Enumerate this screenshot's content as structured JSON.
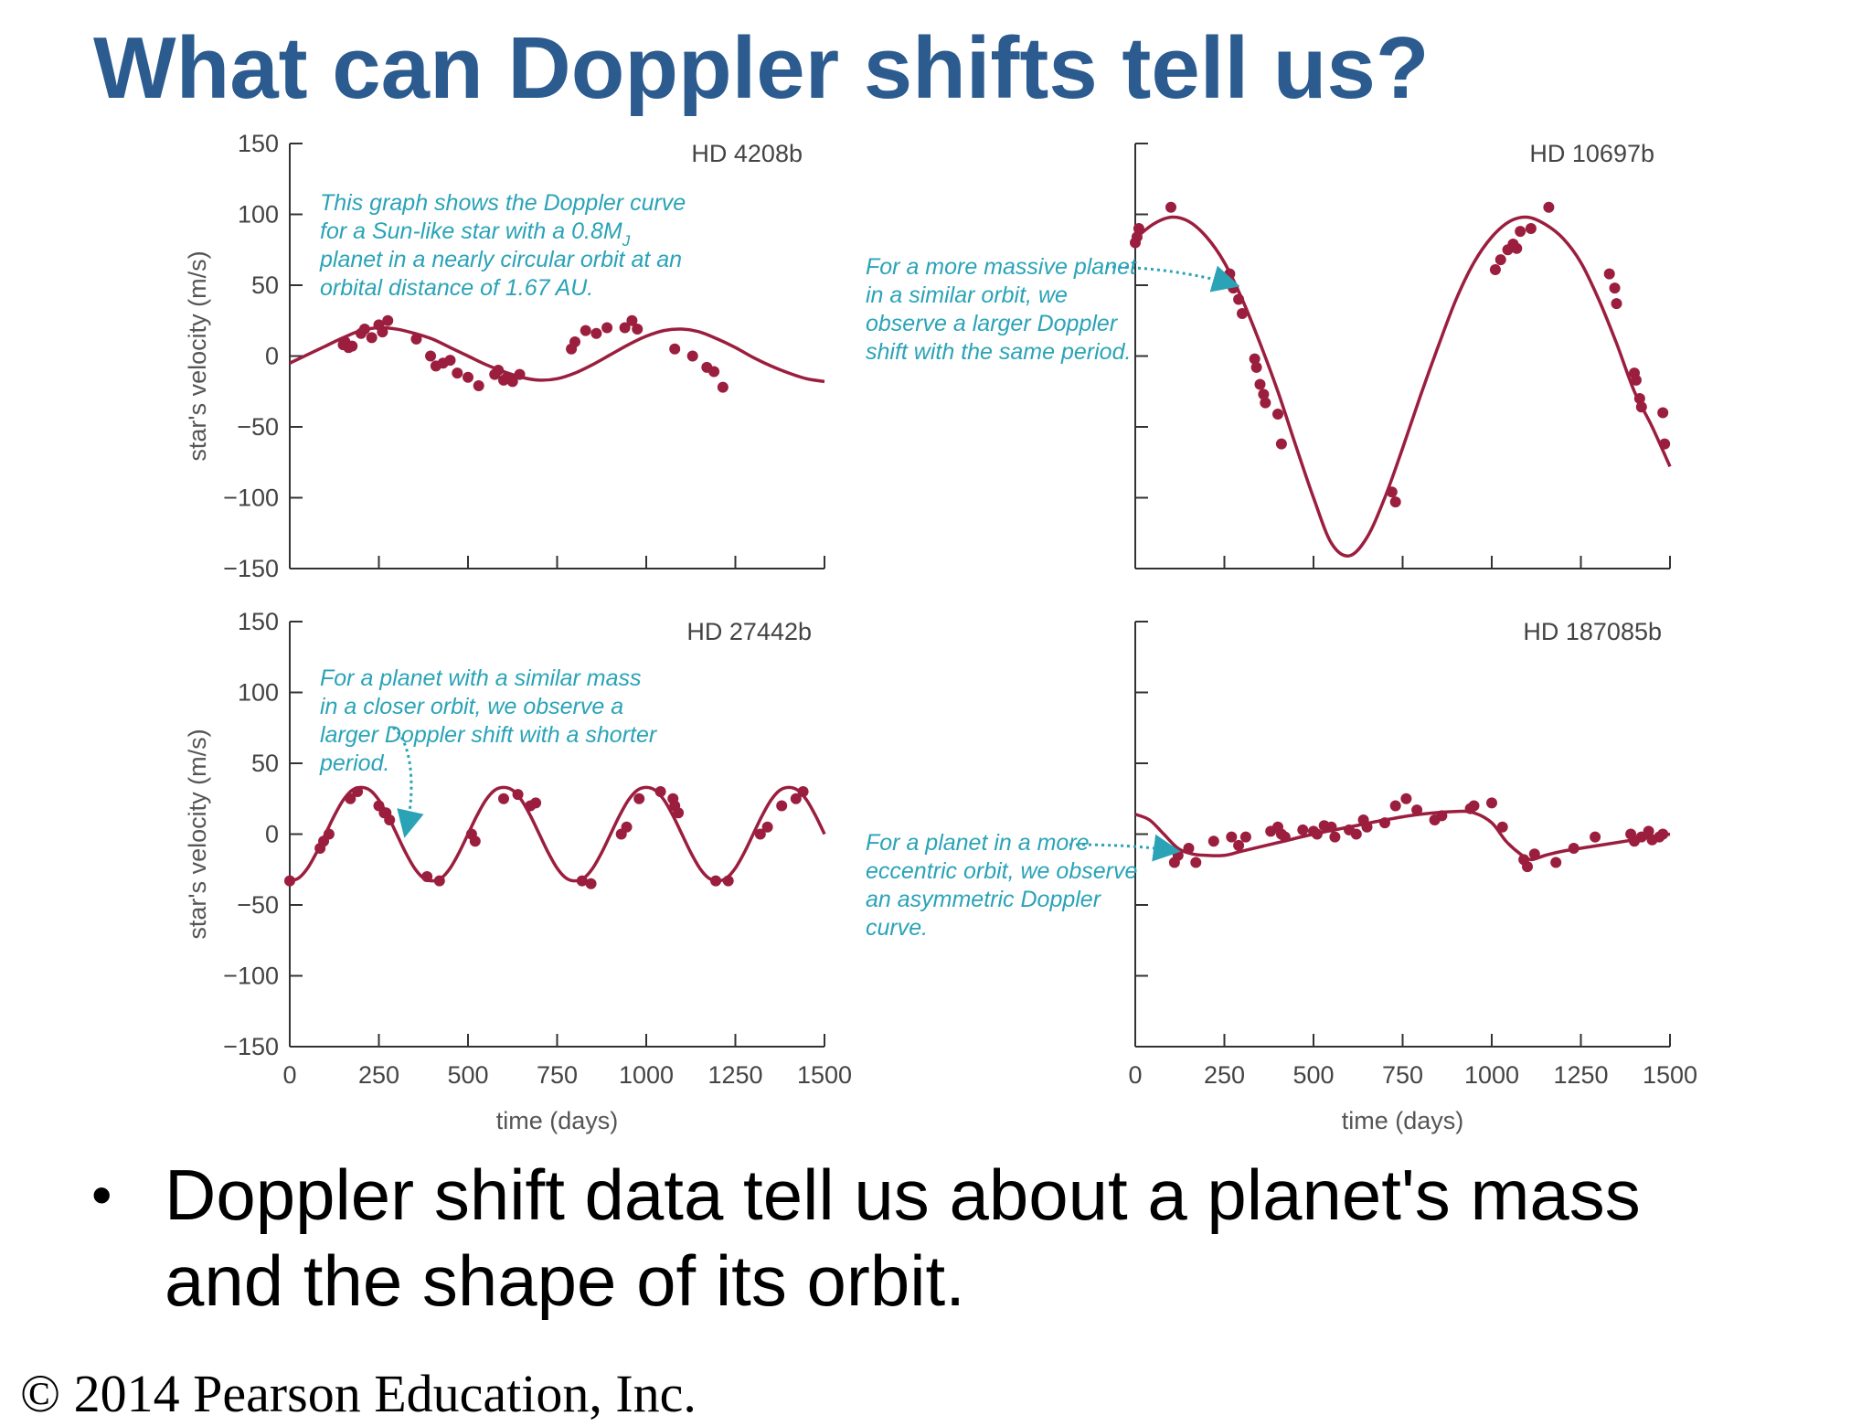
{
  "slide": {
    "title": "What can Doppler shifts tell us?",
    "bullet": "Doppler shift data tell us about a planet's mass and the shape of its orbit.",
    "copyright": "© 2014 Pearson Education, Inc."
  },
  "colors": {
    "title": "#2b5b8f",
    "curve": "#9b1e3e",
    "points": "#9b1e3e",
    "annotation": "#2aa3b7",
    "axis": "#333333"
  },
  "chart_data": [
    {
      "type": "line",
      "panel": "top-left",
      "label": "HD 4208b",
      "xlabel": "",
      "ylabel": "star's velocity (m/s)",
      "xlim": [
        0,
        1500
      ],
      "ylim": [
        -150,
        150
      ],
      "yticks": [
        150,
        100,
        50,
        0,
        -50,
        -100,
        -150
      ],
      "ytick_labels": [
        "150",
        "100",
        "50",
        "0",
        "−50",
        "−100",
        "−150"
      ],
      "xticks": [
        0,
        250,
        500,
        750,
        1000,
        1250,
        1500
      ],
      "xtick_labels": [],
      "annotation": [
        "This graph shows the Doppler curve",
        "for a Sun-like star with a 0.8M",
        "planet in a nearly circular orbit at an",
        "orbital distance of 1.67 AU."
      ],
      "annotation_subscript": "J",
      "curve": {
        "x": [
          0,
          50,
          100,
          150,
          200,
          250,
          300,
          350,
          400,
          450,
          500,
          550,
          600,
          650,
          700,
          750,
          800,
          850,
          900,
          950,
          1000,
          1050,
          1100,
          1150,
          1200,
          1250,
          1300,
          1350,
          1400,
          1450,
          1500
        ],
        "y": [
          -5,
          1,
          7,
          13,
          18,
          20,
          19,
          16,
          12,
          6,
          0,
          -6,
          -11,
          -15,
          -17,
          -16,
          -12,
          -6,
          1,
          8,
          14,
          18,
          19,
          17,
          12,
          6,
          -1,
          -7,
          -12,
          -16,
          -18
        ]
      },
      "points": {
        "x": [
          150,
          155,
          165,
          175,
          200,
          210,
          230,
          250,
          260,
          275,
          355,
          395,
          410,
          430,
          450,
          470,
          500,
          530,
          575,
          585,
          600,
          610,
          625,
          645,
          790,
          800,
          830,
          860,
          890,
          940,
          960,
          975,
          1080,
          1130,
          1170,
          1190,
          1215
        ],
        "y": [
          8,
          10,
          6,
          7,
          16,
          19,
          13,
          22,
          17,
          25,
          12,
          0,
          -7,
          -5,
          -3,
          -12,
          -15,
          -21,
          -13,
          -10,
          -17,
          -15,
          -18,
          -13,
          5,
          10,
          18,
          16,
          20,
          20,
          25,
          19,
          5,
          0,
          -8,
          -11,
          -22
        ]
      }
    },
    {
      "type": "line",
      "panel": "top-right",
      "label": "HD 10697b",
      "xlabel": "",
      "ylabel": "",
      "xlim": [
        0,
        1500
      ],
      "ylim": [
        -150,
        150
      ],
      "yticks": [
        150,
        100,
        50,
        0,
        -50,
        -100,
        -150
      ],
      "ytick_labels": [],
      "xticks": [
        0,
        250,
        500,
        750,
        1000,
        1250,
        1500
      ],
      "xtick_labels": [],
      "annotation": [
        "For a more massive planet",
        "in a similar orbit, we",
        "observe a larger Doppler",
        "shift with the same period."
      ],
      "curve": {
        "x": [
          0,
          50,
          100,
          150,
          200,
          250,
          300,
          350,
          400,
          450,
          500,
          550,
          600,
          650,
          700,
          750,
          800,
          850,
          900,
          950,
          1000,
          1050,
          1100,
          1150,
          1200,
          1250,
          1300,
          1350,
          1400,
          1450,
          1500
        ],
        "y": [
          83,
          93,
          98,
          95,
          84,
          66,
          40,
          9,
          -25,
          -63,
          -100,
          -132,
          -141,
          -128,
          -100,
          -65,
          -28,
          7,
          40,
          66,
          84,
          95,
          98,
          93,
          83,
          66,
          40,
          9,
          -25,
          -50,
          -78
        ]
      },
      "points": {
        "x": [
          0,
          5,
          10,
          100,
          265,
          275,
          290,
          300,
          335,
          340,
          350,
          360,
          365,
          400,
          410,
          720,
          730,
          1010,
          1025,
          1045,
          1060,
          1070,
          1080,
          1110,
          1160,
          1330,
          1345,
          1350,
          1400,
          1405,
          1415,
          1420,
          1480,
          1485
        ],
        "y": [
          80,
          84,
          90,
          105,
          58,
          48,
          40,
          30,
          -2,
          -8,
          -20,
          -27,
          -33,
          -41,
          -62,
          -96,
          -103,
          61,
          68,
          75,
          79,
          76,
          88,
          90,
          105,
          58,
          48,
          37,
          -12,
          -17,
          -30,
          -36,
          -40,
          -62
        ]
      }
    },
    {
      "type": "line",
      "panel": "bottom-left",
      "label": "HD 27442b",
      "xlabel": "time (days)",
      "ylabel": "star's velocity (m/s)",
      "xlim": [
        0,
        1500
      ],
      "ylim": [
        -150,
        150
      ],
      "yticks": [
        150,
        100,
        50,
        0,
        -50,
        -100,
        -150
      ],
      "ytick_labels": [
        "150",
        "100",
        "50",
        "0",
        "−50",
        "−100",
        "−150"
      ],
      "xticks": [
        0,
        250,
        500,
        750,
        1000,
        1250,
        1500
      ],
      "xtick_labels": [
        "0",
        "250",
        "500",
        "750",
        "1000",
        "1250",
        "1500"
      ],
      "annotation": [
        "For a planet with a similar mass",
        "in a closer orbit, we observe a",
        "larger Doppler shift with a shorter",
        "period."
      ],
      "curve": {
        "x": [
          0,
          25,
          50,
          75,
          100,
          125,
          150,
          175,
          200,
          225,
          250,
          275,
          300,
          325,
          350,
          375,
          400,
          425,
          450,
          475,
          500,
          525,
          550,
          575,
          600,
          625,
          650,
          675,
          700,
          725,
          750,
          775,
          800,
          825,
          850,
          875,
          900,
          925,
          950,
          975,
          1000,
          1025,
          1050,
          1075,
          1100,
          1125,
          1150,
          1175,
          1200,
          1225,
          1250,
          1275,
          1300,
          1325,
          1350,
          1375,
          1400,
          1425,
          1450,
          1475,
          1500
        ],
        "y": [
          -33,
          -31,
          -24,
          -13,
          0,
          13,
          24,
          31,
          33,
          31,
          24,
          13,
          0,
          -13,
          -24,
          -31,
          -33,
          -31,
          -24,
          -13,
          0,
          13,
          24,
          31,
          33,
          31,
          24,
          13,
          0,
          -13,
          -24,
          -31,
          -33,
          -31,
          -24,
          -13,
          0,
          13,
          24,
          31,
          33,
          31,
          24,
          13,
          0,
          -13,
          -24,
          -31,
          -33,
          -31,
          -24,
          -13,
          0,
          13,
          24,
          31,
          33,
          31,
          24,
          13,
          0
        ]
      },
      "points": {
        "x": [
          0,
          85,
          95,
          110,
          170,
          190,
          250,
          265,
          270,
          280,
          385,
          420,
          510,
          520,
          600,
          640,
          675,
          690,
          820,
          845,
          930,
          945,
          980,
          1040,
          1075,
          1080,
          1090,
          1195,
          1230,
          1320,
          1340,
          1380,
          1420,
          1440
        ],
        "y": [
          -33,
          -10,
          -5,
          0,
          25,
          30,
          20,
          15,
          15,
          10,
          -30,
          -33,
          0,
          -5,
          25,
          28,
          20,
          22,
          -33,
          -35,
          0,
          5,
          25,
          30,
          25,
          20,
          15,
          -33,
          -33,
          0,
          5,
          20,
          25,
          30
        ]
      }
    },
    {
      "type": "line",
      "panel": "bottom-right",
      "label": "HD 187085b",
      "xlabel": "time (days)",
      "ylabel": "",
      "xlim": [
        0,
        1500
      ],
      "ylim": [
        -150,
        150
      ],
      "yticks": [
        150,
        100,
        50,
        0,
        -50,
        -100,
        -150
      ],
      "ytick_labels": [],
      "xticks": [
        0,
        250,
        500,
        750,
        1000,
        1250,
        1500
      ],
      "xtick_labels": [
        "0",
        "250",
        "500",
        "750",
        "1000",
        "1250",
        "1500"
      ],
      "annotation": [
        "For a planet in a more",
        "eccentric orbit, we observe",
        "an asymmetric Doppler",
        "curve."
      ],
      "curve": {
        "x": [
          0,
          40,
          80,
          120,
          160,
          200,
          250,
          300,
          400,
          500,
          600,
          700,
          800,
          900,
          950,
          1000,
          1040,
          1080,
          1110,
          1150,
          1200,
          1300,
          1400,
          1500
        ],
        "y": [
          14,
          10,
          0,
          -10,
          -14,
          -15,
          -15,
          -12,
          -6,
          0,
          5,
          10,
          14,
          16,
          15,
          8,
          -5,
          -14,
          -18,
          -15,
          -12,
          -8,
          -4,
          0
        ]
      },
      "points": {
        "x": [
          110,
          120,
          150,
          170,
          220,
          270,
          290,
          310,
          380,
          400,
          410,
          420,
          470,
          500,
          510,
          530,
          550,
          560,
          600,
          620,
          640,
          650,
          700,
          730,
          760,
          790,
          840,
          860,
          940,
          950,
          1000,
          1030,
          1090,
          1100,
          1120,
          1180,
          1230,
          1290,
          1390,
          1400,
          1420,
          1440,
          1450,
          1470,
          1480
        ],
        "y": [
          -20,
          -15,
          -10,
          -20,
          -5,
          -2,
          -8,
          -2,
          2,
          5,
          0,
          -2,
          3,
          2,
          0,
          6,
          5,
          -2,
          3,
          0,
          10,
          5,
          8,
          20,
          25,
          17,
          10,
          13,
          18,
          20,
          22,
          5,
          -18,
          -23,
          -14,
          -20,
          -10,
          -2,
          0,
          -5,
          -2,
          2,
          -4,
          -2,
          0
        ]
      }
    }
  ]
}
